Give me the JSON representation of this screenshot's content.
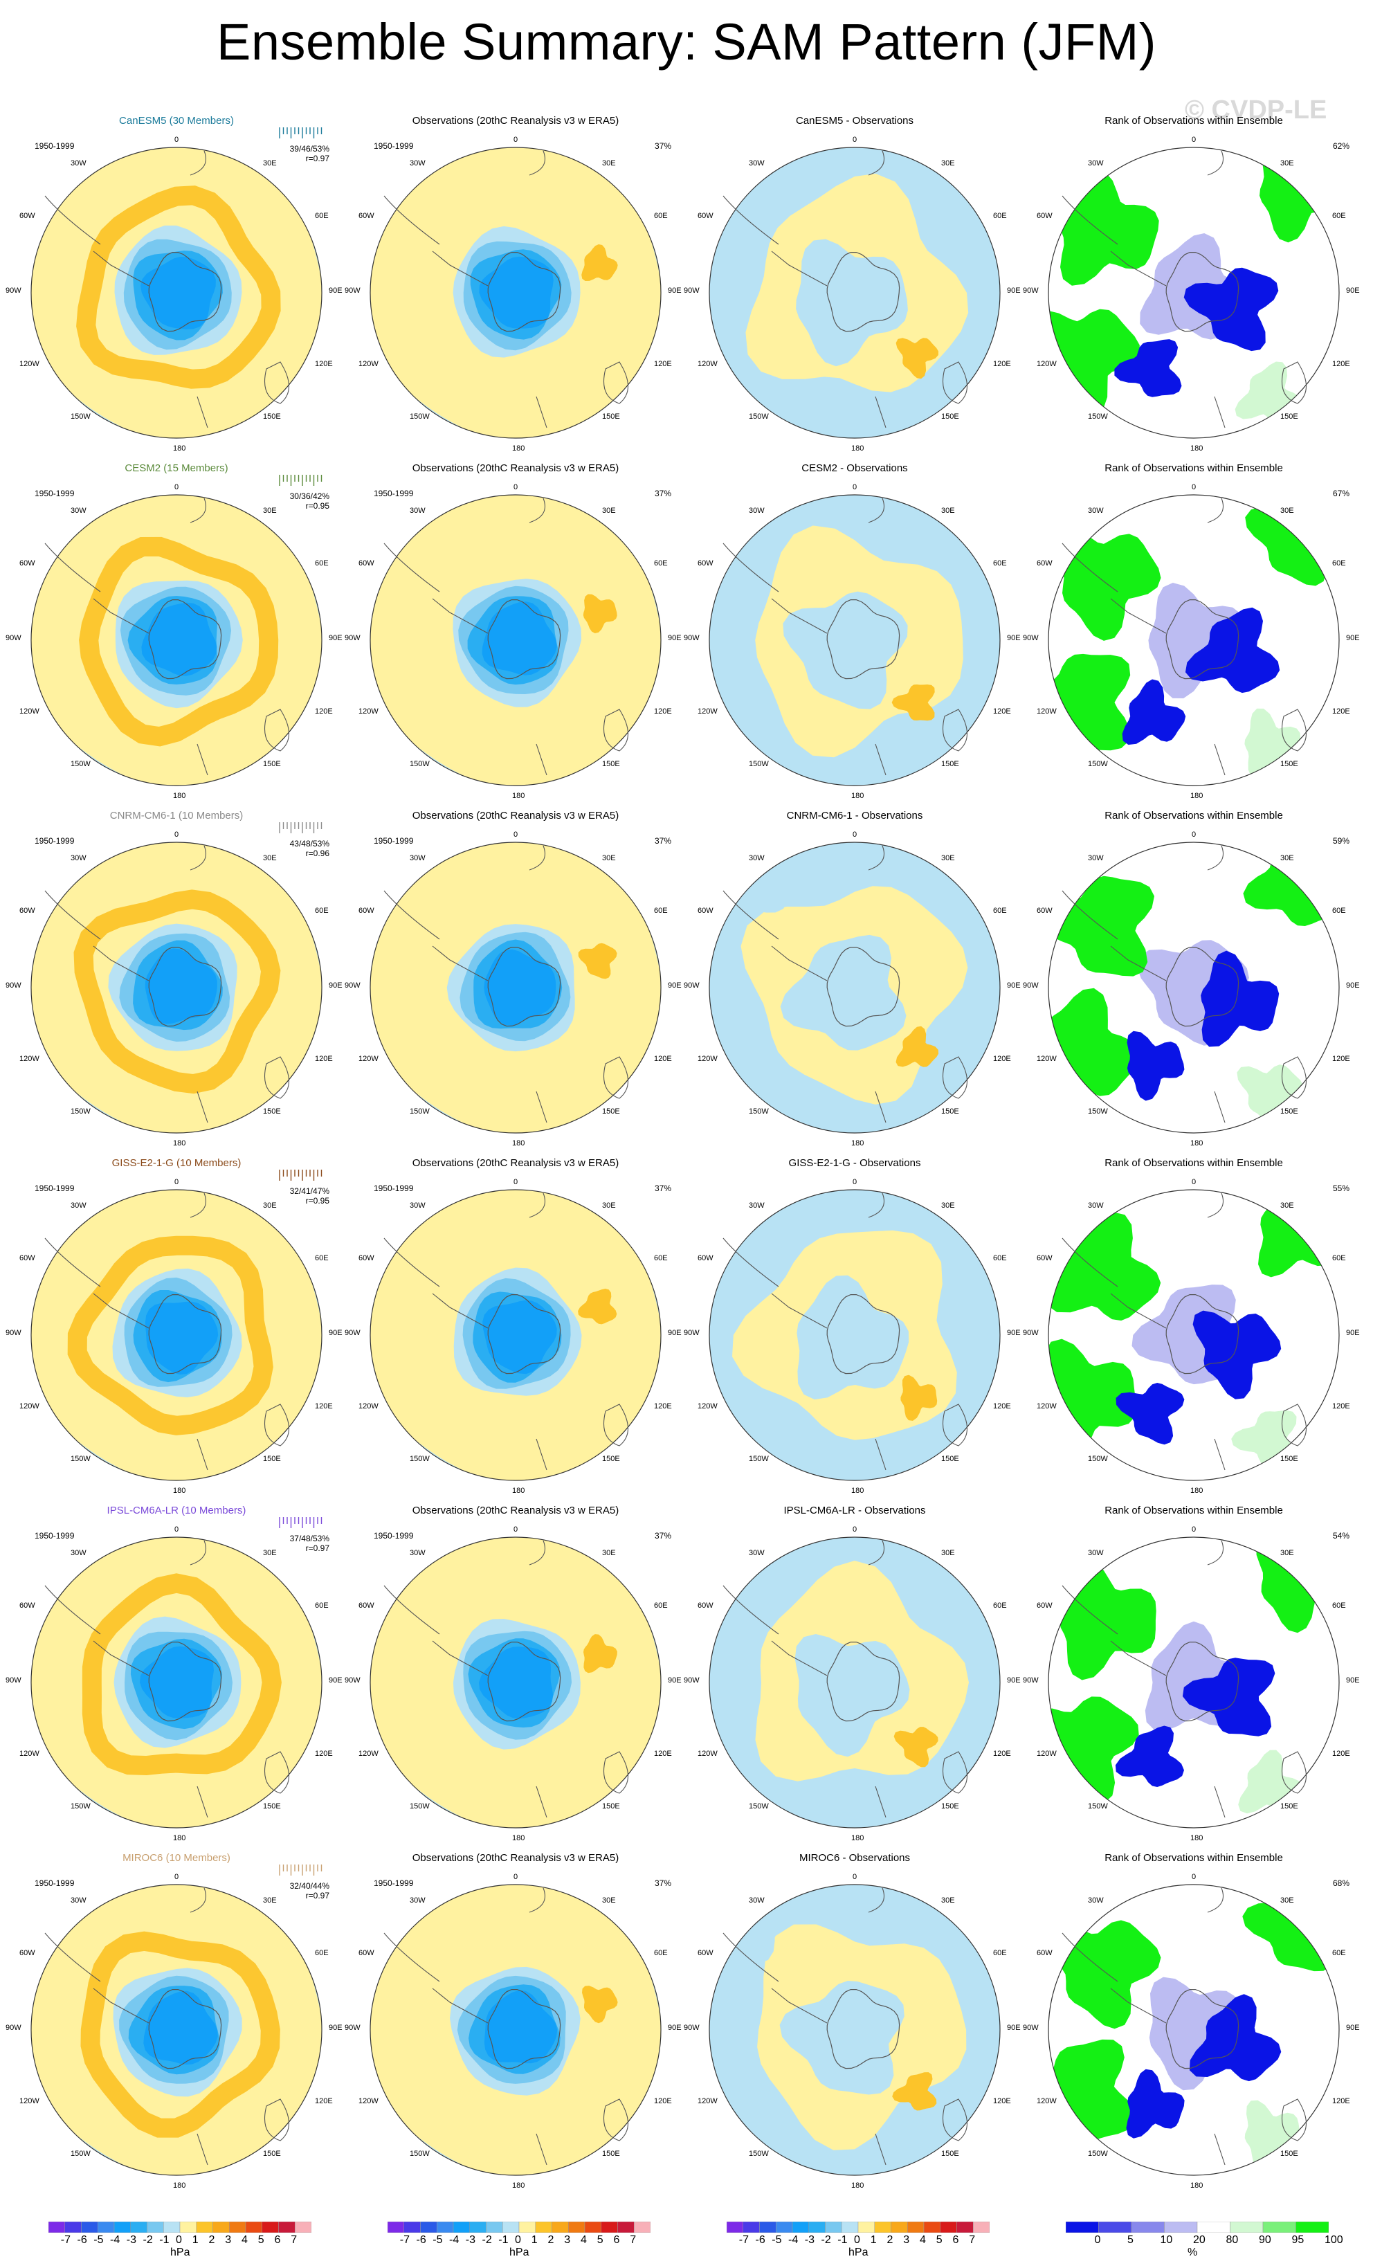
{
  "title": "Ensemble Summary: SAM Pattern (JFM)",
  "watermark": "© CVDP-LE",
  "period": "1950-1999",
  "obs_title": "Observations (20thC Reanalysis v3 w ERA5)",
  "obs_pct": "37%",
  "rank_title": "Rank of Observations within Ensemble",
  "lon_labels": {
    "top": "0",
    "r30": "30E",
    "r60": "60E",
    "r90": "90E",
    "r120": "120E",
    "r150": "150E",
    "bottom": "180",
    "l150": "150W",
    "l120": "120W",
    "l90": "90W",
    "l60": "60W",
    "l30": "30W"
  },
  "colors": {
    "title_canesm5": "#1a7a9a",
    "title_cesm2": "#5a8a3a",
    "title_cnrm": "#8a8a8a",
    "title_giss": "#8a4a1a",
    "title_ipsl": "#7a4ad9",
    "title_miroc": "#c8a070",
    "yellow": "#fff2a0",
    "orange": "#fcc42a",
    "lightblue": "#b8e2f4",
    "blue1": "#78c8f0",
    "blue2": "#2aaef2",
    "blue3": "#12a0f8",
    "rank_blue": "#0a14e6",
    "rank_lightblue": "#bcbcf2",
    "rank_green": "#14f014",
    "rank_lightgreen": "#d2f8d2"
  },
  "rows": [
    {
      "model_title": "CanESM5 (30 Members)",
      "stats_a": "39/46/53%",
      "stats_b": "r=0.97",
      "diff_title": "CanESM5 - Observations",
      "rank_pct": "62%"
    },
    {
      "model_title": "CESM2 (15 Members)",
      "stats_a": "30/36/42%",
      "stats_b": "r=0.95",
      "diff_title": "CESM2 - Observations",
      "rank_pct": "67%"
    },
    {
      "model_title": "CNRM-CM6-1 (10 Members)",
      "stats_a": "43/48/53%",
      "stats_b": "r=0.96",
      "diff_title": "CNRM-CM6-1 - Observations",
      "rank_pct": "59%"
    },
    {
      "model_title": "GISS-E2-1-G (10 Members)",
      "stats_a": "32/41/47%",
      "stats_b": "r=0.95",
      "diff_title": "GISS-E2-1-G - Observations",
      "rank_pct": "55%"
    },
    {
      "model_title": "IPSL-CM6A-LR (10 Members)",
      "stats_a": "37/48/53%",
      "stats_b": "r=0.97",
      "diff_title": "IPSL-CM6A-LR - Observations",
      "rank_pct": "54%"
    },
    {
      "model_title": "MIROC6 (10 Members)",
      "stats_a": "32/40/44%",
      "stats_b": "r=0.97",
      "diff_title": "MIROC6 - Observations",
      "rank_pct": "68%"
    }
  ],
  "colorbar_hpa": {
    "labels": [
      "-7",
      "-6",
      "-5",
      "-4",
      "-3",
      "-2",
      "-1",
      "0",
      "1",
      "2",
      "3",
      "4",
      "5",
      "6",
      "7"
    ],
    "unit": "hPa",
    "colors": [
      "#7d2ae8",
      "#4a3ae8",
      "#2a5ae8",
      "#3a8af0",
      "#12a0f8",
      "#2aaef2",
      "#78c8f0",
      "#b8e2f4",
      "#fff2a0",
      "#fcc42a",
      "#f8a81a",
      "#f07a12",
      "#ea4a12",
      "#d81a1a",
      "#c81a3a",
      "#f8b0b8"
    ]
  },
  "colorbar_rank": {
    "labels": [
      "0",
      "5",
      "10",
      "20",
      "80",
      "90",
      "95",
      "100"
    ],
    "unit": "%",
    "colors": [
      "#0a14e6",
      "#4a4ae8",
      "#8888ec",
      "#bcbcf2",
      "#ffffff",
      "#d2f8d2",
      "#7af07a",
      "#14f014"
    ]
  }
}
